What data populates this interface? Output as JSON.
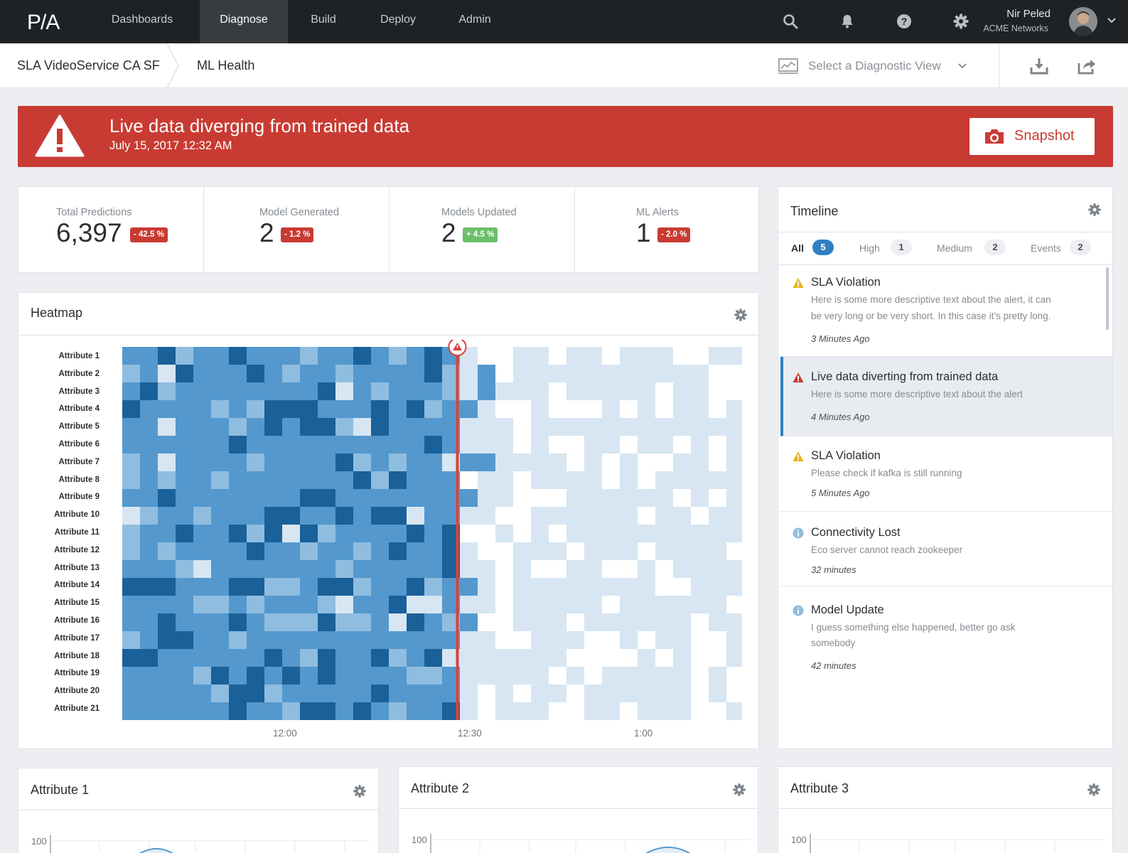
{
  "nav": {
    "logo_text": "P/A",
    "items": [
      "Dashboards",
      "Diagnose",
      "Build",
      "Deploy",
      "Admin"
    ],
    "active": "Diagnose",
    "icons": [
      "search-icon",
      "bell-icon",
      "help-icon",
      "gear-icon"
    ],
    "user": {
      "name": "Nir Peled",
      "org": "ACME Networks"
    }
  },
  "subheader": {
    "breadcrumb": [
      "SLA VideoService CA SF",
      "ML Health"
    ],
    "diagnostic_placeholder": "Select a Diagnostic View",
    "actions": [
      "download-icon",
      "share-icon"
    ]
  },
  "alert": {
    "title": "Live data diverging from trained data",
    "time": "July 15, 2017  12:32 AM",
    "button": "Snapshot"
  },
  "stats": [
    {
      "label": "Total Predictions",
      "value": "6,397",
      "change": "- 42.5 %",
      "trend": "down"
    },
    {
      "label": "Model Generated",
      "value": "2",
      "change": "- 1.2 %",
      "trend": "down"
    },
    {
      "label": "Models Updated",
      "value": "2",
      "change": "+ 4.5 %",
      "trend": "up"
    },
    {
      "label": "ML Alerts",
      "value": "1",
      "change": "- 2.0 %",
      "trend": "down"
    }
  ],
  "heatmap": {
    "title": "Heatmap",
    "rows": [
      "Attribute 1",
      "Attribute 2",
      "Attribute 3",
      "Attribute 4",
      "Attribute 5",
      "Attribute 6",
      "Attribute 7",
      "Attribute 8",
      "Attribute 9",
      "Attribute 10",
      "Attribute 11",
      "Attribute 12",
      "Attribute 13",
      "Attribute 14",
      "Attribute 15",
      "Attribute 16",
      "Attribute 17",
      "Attribute 18",
      "Attribute 19",
      "Attribute 20",
      "Attribute 21"
    ],
    "time_labels": [
      "12:00",
      "12:30",
      "1:00"
    ],
    "colors": {
      "lightest": "#ffffff",
      "light": "#d7e6f2",
      "mid": "#8fbde0",
      "base": "#5498cd",
      "dark": "#1a6099",
      "marker": "#d9433b"
    }
  },
  "timeline": {
    "title": "Timeline",
    "tabs": [
      {
        "label": "All",
        "count": "5"
      },
      {
        "label": "High",
        "count": "1"
      },
      {
        "label": "Medium",
        "count": "2"
      },
      {
        "label": "Events",
        "count": "2"
      }
    ],
    "items": [
      {
        "type": "warning",
        "title": "SLA Violation",
        "desc1": "Here is some more descriptive text about the alert, it can",
        "desc2": "be very long or be very short. In this case it’s pretty long.",
        "time": "3 Minutes Ago"
      },
      {
        "type": "critical",
        "title": "Live data diverting from trained data",
        "desc1": "Here is some more descriptive text about the alert",
        "time": "4 Minutes Ago"
      },
      {
        "type": "warning",
        "title": "SLA Violation",
        "desc1": "Please check if kafka is still running",
        "time": "5 Minutes Ago"
      },
      {
        "type": "info",
        "title": "Connectivity Lost",
        "desc1": "Eco server cannot reach zookeeper",
        "time": "32 minutes"
      },
      {
        "type": "info",
        "title": "Model Update",
        "desc1": "I guess something else happened, better go ask",
        "desc2": "somebody",
        "time": "42 minutes"
      }
    ]
  },
  "attribute_panels": [
    {
      "title": "Attribute 1",
      "ytick": "100"
    },
    {
      "title": "Attribute 2",
      "ytick": "100"
    },
    {
      "title": "Attribute 3",
      "ytick": "100"
    }
  ]
}
